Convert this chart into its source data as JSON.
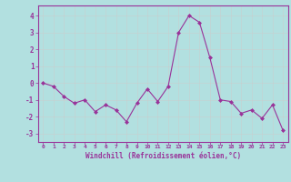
{
  "x": [
    0,
    1,
    2,
    3,
    4,
    5,
    6,
    7,
    8,
    9,
    10,
    11,
    12,
    13,
    14,
    15,
    16,
    17,
    18,
    19,
    20,
    21,
    22,
    23
  ],
  "y": [
    0.0,
    -0.2,
    -0.8,
    -1.2,
    -1.0,
    -1.7,
    -1.3,
    -1.6,
    -2.3,
    -1.2,
    -0.35,
    -1.1,
    -0.2,
    3.0,
    4.0,
    3.6,
    1.5,
    -1.0,
    -1.1,
    -1.8,
    -1.6,
    -2.1,
    -1.3,
    -2.8
  ],
  "line_color": "#993399",
  "marker": "D",
  "marker_size": 2,
  "bg_color": "#b2e0e0",
  "grid_color": "#cccccc",
  "xlabel": "Windchill (Refroidissement éolien,°C)",
  "xlabel_color": "#993399",
  "tick_color": "#993399",
  "ylim": [
    -3.5,
    4.6
  ],
  "xlim": [
    -0.5,
    23.5
  ],
  "yticks": [
    -3,
    -2,
    -1,
    0,
    1,
    2,
    3,
    4
  ],
  "xticks": [
    0,
    1,
    2,
    3,
    4,
    5,
    6,
    7,
    8,
    9,
    10,
    11,
    12,
    13,
    14,
    15,
    16,
    17,
    18,
    19,
    20,
    21,
    22,
    23
  ]
}
